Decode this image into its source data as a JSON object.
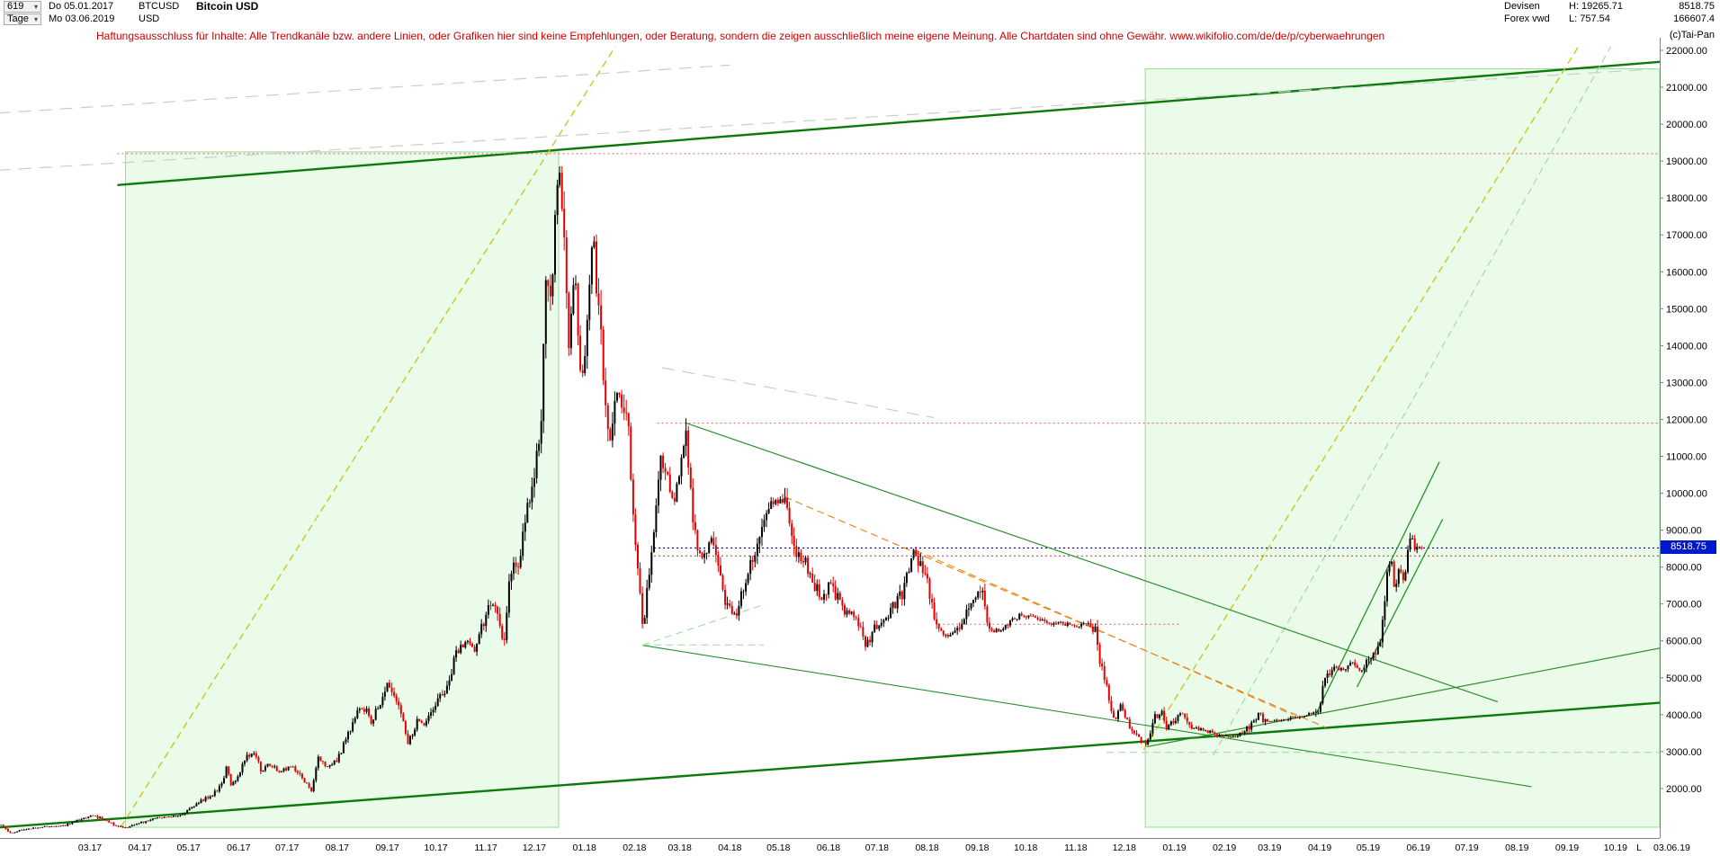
{
  "meta": {
    "copyright": "(c)Tai-Pan"
  },
  "header": {
    "bars_count": "619",
    "start_date": "Do 05.01.2017",
    "timeframe": "Tage",
    "end_date": "Mo 03.06.2019",
    "symbol": "BTCUSD",
    "currency": "USD",
    "title": "Bitcoin USD",
    "market": "Devisen",
    "source": "Forex vwd",
    "high_label": "H: 19265.71",
    "low_label": "L: 757.54",
    "last_price": "8518.75",
    "volume": "166607.4"
  },
  "disclaimer": "Haftungsausschluss für Inhalte: Alle Trendkanäle bzw. andere Linien, oder Grafiken hier sind keine Empfehlungen, oder Beratung, sondern die zeigen ausschließlich meine eigene Meinung. Alle Chartdaten sind ohne Gewähr.  www.wikifolio.com/de/de/p/cyberwaehrungen",
  "chart_data": {
    "type": "candlestick",
    "title": "Bitcoin USD",
    "symbol": "BTCUSD",
    "timeframe": "Tage",
    "range": [
      "2017-01-05",
      "2019-06-03"
    ],
    "bars": 619,
    "period_high": 19265.71,
    "period_low": 757.54,
    "current_price": 8518.75,
    "current_price_label": "8518.75",
    "ylabel": "USD",
    "ylim": [
      2000,
      22000
    ],
    "grid": false,
    "legend": false,
    "y_ticks": [
      "22000.00",
      "21000.00",
      "20000.00",
      "19000.00",
      "18000.00",
      "17000.00",
      "16000.00",
      "15000.00",
      "14000.00",
      "13000.00",
      "12000.00",
      "11000.00",
      "10000.00",
      "9000.00",
      "8000.00",
      "7000.00",
      "6000.00",
      "5000.00",
      "4000.00",
      "3000.00",
      "2000.00"
    ],
    "x_ticks": [
      "03.17",
      "04.17",
      "05.17",
      "06.17",
      "07.17",
      "08.17",
      "09.17",
      "10.17",
      "11.17",
      "12.17",
      "01.18",
      "02.18",
      "03.18",
      "04.18",
      "05.18",
      "06.18",
      "07.18",
      "08.18",
      "09.18",
      "10.18",
      "11.18",
      "12.18",
      "01.19",
      "02.19",
      "03.19",
      "04.19",
      "05.19",
      "06.19",
      "07.19",
      "08.19",
      "09.19",
      "10.19"
    ],
    "last_label": "L",
    "last_date_label": "03.06.19",
    "colors": {
      "up": "#000000",
      "down": "#e00000",
      "channel": "#0b7a0b",
      "trend": "#2d8f2d",
      "light_green": "#9fd89f",
      "yellow": "#c8c81e",
      "orange": "#e8881e",
      "red_level": "#e06060",
      "navy": "#0000a0",
      "dark_red": "#a04040",
      "gray": "#cccccc",
      "zone_fill": "#7ce87c",
      "zone_border": "#50c050",
      "axis": "#808080",
      "label": "#000000",
      "price_tag_bg": "#0018cc",
      "price_tag_text": "#ffffff"
    },
    "keyframes": [
      [
        "2017-01-05",
        1005
      ],
      [
        "2017-01-08",
        900
      ],
      [
        "2017-01-11",
        785
      ],
      [
        "2017-01-14",
        830
      ],
      [
        "2017-01-20",
        895
      ],
      [
        "2017-01-31",
        965
      ],
      [
        "2017-02-09",
        985
      ],
      [
        "2017-02-14",
        1010
      ],
      [
        "2017-02-24",
        1180
      ],
      [
        "2017-03-03",
        1275
      ],
      [
        "2017-03-10",
        1150
      ],
      [
        "2017-03-18",
        975
      ],
      [
        "2017-03-24",
        935
      ],
      [
        "2017-03-30",
        1040
      ],
      [
        "2017-04-10",
        1190
      ],
      [
        "2017-04-20",
        1230
      ],
      [
        "2017-04-28",
        1320
      ],
      [
        "2017-05-08",
        1650
      ],
      [
        "2017-05-16",
        1830
      ],
      [
        "2017-05-22",
        2150
      ],
      [
        "2017-05-25",
        2680
      ],
      [
        "2017-05-27",
        2050
      ],
      [
        "2017-05-31",
        2300
      ],
      [
        "2017-06-06",
        2870
      ],
      [
        "2017-06-11",
        2980
      ],
      [
        "2017-06-15",
        2430
      ],
      [
        "2017-06-19",
        2680
      ],
      [
        "2017-06-26",
        2450
      ],
      [
        "2017-07-04",
        2600
      ],
      [
        "2017-07-10",
        2330
      ],
      [
        "2017-07-16",
        1930
      ],
      [
        "2017-07-20",
        2860
      ],
      [
        "2017-07-25",
        2580
      ],
      [
        "2017-08-01",
        2750
      ],
      [
        "2017-08-07",
        3390
      ],
      [
        "2017-08-14",
        4160
      ],
      [
        "2017-08-19",
        4150
      ],
      [
        "2017-08-22",
        3750
      ],
      [
        "2017-08-31",
        4730
      ],
      [
        "2017-09-01",
        4900
      ],
      [
        "2017-09-08",
        4230
      ],
      [
        "2017-09-14",
        3230
      ],
      [
        "2017-09-20",
        3900
      ],
      [
        "2017-09-24",
        3660
      ],
      [
        "2017-10-02",
        4400
      ],
      [
        "2017-10-09",
        4770
      ],
      [
        "2017-10-13",
        5640
      ],
      [
        "2017-10-20",
        6000
      ],
      [
        "2017-10-25",
        5720
      ],
      [
        "2017-11-01",
        6750
      ],
      [
        "2017-11-07",
        7100
      ],
      [
        "2017-11-12",
        5880
      ],
      [
        "2017-11-16",
        7870
      ],
      [
        "2017-11-22",
        8250
      ],
      [
        "2017-11-26",
        9350
      ],
      [
        "2017-11-30",
        10230
      ],
      [
        "2017-12-05",
        11700
      ],
      [
        "2017-12-08",
        16200
      ],
      [
        "2017-12-10",
        15000
      ],
      [
        "2017-12-13",
        16550
      ],
      [
        "2017-12-16",
        19150
      ],
      [
        "2017-12-20",
        16750
      ],
      [
        "2017-12-22",
        13830
      ],
      [
        "2017-12-26",
        15900
      ],
      [
        "2017-12-30",
        12950
      ],
      [
        "2018-01-01",
        13450
      ],
      [
        "2018-01-06",
        17150
      ],
      [
        "2018-01-10",
        14900
      ],
      [
        "2018-01-16",
        11200
      ],
      [
        "2018-01-20",
        12800
      ],
      [
        "2018-01-28",
        11800
      ],
      [
        "2018-02-01",
        9050
      ],
      [
        "2018-02-06",
        6250
      ],
      [
        "2018-02-11",
        8350
      ],
      [
        "2018-02-17",
        10800
      ],
      [
        "2018-02-21",
        10650
      ],
      [
        "2018-02-25",
        9550
      ],
      [
        "2018-03-05",
        11650
      ],
      [
        "2018-03-09",
        9250
      ],
      [
        "2018-03-14",
        8200
      ],
      [
        "2018-03-21",
        8930
      ],
      [
        "2018-03-29",
        7050
      ],
      [
        "2018-04-05",
        6650
      ],
      [
        "2018-04-12",
        7890
      ],
      [
        "2018-04-20",
        8860
      ],
      [
        "2018-04-24",
        9650
      ],
      [
        "2018-05-05",
        9840
      ],
      [
        "2018-05-11",
        8450
      ],
      [
        "2018-05-18",
        8100
      ],
      [
        "2018-05-23",
        7550
      ],
      [
        "2018-05-28",
        7130
      ],
      [
        "2018-06-02",
        7640
      ],
      [
        "2018-06-10",
        6790
      ],
      [
        "2018-06-18",
        6720
      ],
      [
        "2018-06-24",
        5880
      ],
      [
        "2018-06-30",
        6400
      ],
      [
        "2018-07-08",
        6720
      ],
      [
        "2018-07-17",
        7320
      ],
      [
        "2018-07-24",
        8420
      ],
      [
        "2018-07-31",
        7730
      ],
      [
        "2018-08-04",
        7020
      ],
      [
        "2018-08-08",
        6290
      ],
      [
        "2018-08-14",
        6110
      ],
      [
        "2018-08-22",
        6380
      ],
      [
        "2018-08-28",
        7090
      ],
      [
        "2018-09-04",
        7370
      ],
      [
        "2018-09-08",
        6220
      ],
      [
        "2018-09-18",
        6330
      ],
      [
        "2018-09-27",
        6680
      ],
      [
        "2018-10-08",
        6620
      ],
      [
        "2018-10-15",
        6440
      ],
      [
        "2018-10-24",
        6490
      ],
      [
        "2018-11-01",
        6340
      ],
      [
        "2018-11-07",
        6500
      ],
      [
        "2018-11-13",
        6330
      ],
      [
        "2018-11-15",
        5600
      ],
      [
        "2018-11-19",
        4950
      ],
      [
        "2018-11-25",
        3780
      ],
      [
        "2018-11-29",
        4270
      ],
      [
        "2018-12-06",
        3480
      ],
      [
        "2018-12-15",
        3180
      ],
      [
        "2018-12-19",
        3900
      ],
      [
        "2018-12-24",
        4080
      ],
      [
        "2018-12-27",
        3650
      ],
      [
        "2019-01-02",
        3870
      ],
      [
        "2019-01-06",
        4060
      ],
      [
        "2019-01-11",
        3650
      ],
      [
        "2019-01-20",
        3580
      ],
      [
        "2019-01-28",
        3440
      ],
      [
        "2019-02-07",
        3400
      ],
      [
        "2019-02-17",
        3670
      ],
      [
        "2019-02-23",
        4140
      ],
      [
        "2019-02-25",
        3820
      ],
      [
        "2019-03-04",
        3830
      ],
      [
        "2019-03-15",
        3920
      ],
      [
        "2019-03-27",
        4020
      ],
      [
        "2019-04-01",
        4160
      ],
      [
        "2019-04-03",
        4920
      ],
      [
        "2019-04-10",
        5300
      ],
      [
        "2019-04-16",
        5220
      ],
      [
        "2019-04-22",
        5420
      ],
      [
        "2019-04-26",
        5180
      ],
      [
        "2019-05-02",
        5480
      ],
      [
        "2019-05-08",
        5930
      ],
      [
        "2019-05-11",
        6950
      ],
      [
        "2019-05-13",
        7820
      ],
      [
        "2019-05-15",
        8100
      ],
      [
        "2019-05-16",
        8200
      ],
      [
        "2019-05-17",
        7350
      ],
      [
        "2019-05-20",
        7990
      ],
      [
        "2019-05-23",
        7650
      ],
      [
        "2019-05-27",
        8740
      ],
      [
        "2019-05-29",
        8700
      ],
      [
        "2019-05-30",
        8320
      ],
      [
        "2019-06-01",
        8550
      ],
      [
        "2019-06-03",
        8518.75
      ]
    ],
    "annotations": {
      "lines": [
        {
          "n": "upper-channel-line",
          "x1": "2017-03-18",
          "y1": 18350,
          "x2": "2019-11-15",
          "y2": 21750,
          "c": "channel",
          "w": 2.4
        },
        {
          "n": "lower-channel-line",
          "x1": "2017-01-03",
          "y1": 940,
          "x2": "2019-11-15",
          "y2": 4380,
          "c": "channel",
          "w": 2.4
        },
        {
          "n": "support-2019-line",
          "x1": "2018-12-15",
          "y1": 3130,
          "x2": "2019-11-15",
          "y2": 5950,
          "c": "trend",
          "w": 1.2
        },
        {
          "n": "parabolic-2017-line",
          "x1": "2017-03-20",
          "y1": 950,
          "x2": "2018-01-20",
          "y2": 22100,
          "c": "yellow",
          "w": 1.4,
          "d": "dash"
        },
        {
          "n": "parabolic-2019-line",
          "x1": "2018-12-13",
          "y1": 3050,
          "x2": "2019-09-08",
          "y2": 22100,
          "c": "yellow",
          "w": 1.4,
          "d": "dash"
        },
        {
          "n": "parabolic-2019-inner-line",
          "x1": "2019-01-25",
          "y1": 2900,
          "x2": "2019-09-28",
          "y2": 22100,
          "c": "light_green",
          "w": 1.1,
          "d": "dash"
        },
        {
          "n": "resistance-19200-line",
          "x1": "2017-03-18",
          "y1": 19200,
          "x2": "2019-11-15",
          "y2": 19200,
          "c": "red_level",
          "w": 1,
          "d": "dot"
        },
        {
          "n": "resistance-11900-line",
          "x1": "2018-02-15",
          "y1": 11900,
          "x2": "2019-11-15",
          "y2": 11900,
          "c": "red_level",
          "w": 1,
          "d": "dot"
        },
        {
          "n": "current-price-line",
          "x1": "2018-02-13",
          "y1": 8518.75,
          "x2": "2019-11-15",
          "y2": 8518.75,
          "c": "navy",
          "w": 1.1,
          "d": "dot"
        },
        {
          "n": "level-8300-line",
          "x1": "2018-02-13",
          "y1": 8300,
          "x2": "2019-11-15",
          "y2": 8300,
          "c": "dark_red",
          "w": 1,
          "d": "dot"
        },
        {
          "n": "level-6450-line",
          "x1": "2018-08-08",
          "y1": 6450,
          "x2": "2019-01-05",
          "y2": 6450,
          "c": "red_level",
          "w": 1,
          "d": "dot"
        },
        {
          "n": "descending-2018-line",
          "x1": "2018-03-05",
          "y1": 11900,
          "x2": "2019-07-20",
          "y2": 4350,
          "c": "trend",
          "w": 1.2
        },
        {
          "n": "descending-2018-lower-line",
          "x1": "2018-02-06",
          "y1": 5880,
          "x2": "2019-08-10",
          "y2": 2050,
          "c": "trend",
          "w": 1.1
        },
        {
          "n": "orange-trend-line-1",
          "x1": "2018-05-05",
          "y1": 9900,
          "x2": "2019-04-05",
          "y2": 3650,
          "c": "orange",
          "w": 1.2,
          "d": "dash"
        },
        {
          "n": "orange-trend-line-2",
          "x1": "2018-07-25",
          "y1": 8450,
          "x2": "2019-03-15",
          "y2": 4000,
          "c": "orange",
          "w": 1.1,
          "d": "dash"
        },
        {
          "n": "rally-channel-line-1",
          "x1": "2019-03-30",
          "y1": 4050,
          "x2": "2019-06-14",
          "y2": 10850,
          "c": "trend",
          "w": 1.3
        },
        {
          "n": "rally-channel-line-2",
          "x1": "2019-04-24",
          "y1": 4750,
          "x2": "2019-06-16",
          "y2": 9300,
          "c": "trend",
          "w": 1.3
        },
        {
          "n": "wedge-feb18-upper-line",
          "x1": "2018-02-06",
          "y1": 5890,
          "x2": "2018-04-22",
          "y2": 6980,
          "c": "light_green",
          "w": 1,
          "d": "dash"
        },
        {
          "n": "wedge-feb18-lower-line",
          "x1": "2018-02-06",
          "y1": 5890,
          "x2": "2018-04-22",
          "y2": 5890,
          "c": "light_green",
          "w": 1,
          "d": "dash"
        },
        {
          "n": "level-3000-line",
          "x1": "2018-11-20",
          "y1": 2980,
          "x2": "2019-11-15",
          "y2": 2980,
          "c": "light_green",
          "w": 1,
          "d": "dash"
        },
        {
          "n": "old-gray-line-1",
          "x1": "2017-01-03",
          "y1": 18750,
          "x2": "2019-11-15",
          "y2": 21550,
          "c": "gray",
          "w": 1.2,
          "d": "longdash"
        },
        {
          "n": "old-gray-line-2",
          "x1": "2018-02-18",
          "y1": 13400,
          "x2": "2018-08-05",
          "y2": 12050,
          "c": "gray",
          "w": 1.2,
          "d": "longdash"
        },
        {
          "n": "old-gray-line-3",
          "x1": "2017-01-03",
          "y1": 20300,
          "x2": "2018-04-01",
          "y2": 21600,
          "c": "gray",
          "w": 1.2,
          "d": "longdash"
        }
      ],
      "boxes": [
        {
          "n": "accumulation-zone-2017",
          "x1": "2017-03-23",
          "x2": "2017-12-16",
          "y1": 950,
          "y2": 19250
        },
        {
          "n": "accumulation-zone-2019",
          "x1": "2018-12-14",
          "x2": "2019-11-15",
          "y1": 950,
          "y2": 21500
        }
      ]
    }
  }
}
